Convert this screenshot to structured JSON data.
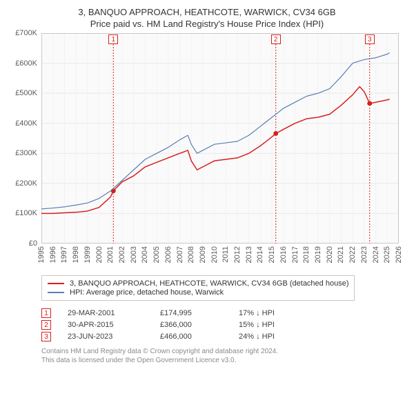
{
  "title_line1": "3, BANQUO APPROACH, HEATHCOTE, WARWICK, CV34 6GB",
  "title_line2": "Price paid vs. HM Land Registry's House Price Index (HPI)",
  "chart": {
    "type": "line",
    "background_color": "#fafafa",
    "grid_color": "#e8e8e8",
    "grid_minor_color": "#f2f2f2",
    "x": {
      "min": 1995,
      "max": 2026,
      "tick_step": 1,
      "label_fontsize": 11,
      "label_color": "#5a5a5a",
      "rotation_deg": -90
    },
    "y": {
      "min": 0,
      "max": 700000,
      "tick_step": 100000,
      "prefix": "£",
      "suffix": "K",
      "label_fontsize": 11,
      "label_color": "#5a5a5a"
    },
    "series": [
      {
        "name": "subject",
        "label": "3, BANQUO APPROACH, HEATHCOTE, WARWICK, CV34 6GB (detached house)",
        "color": "#d81e1e",
        "line_width": 1.5,
        "points": [
          [
            1995,
            100000
          ],
          [
            1996,
            100000
          ],
          [
            1997,
            102000
          ],
          [
            1998,
            104000
          ],
          [
            1999,
            108000
          ],
          [
            2000,
            120000
          ],
          [
            2001,
            155000
          ],
          [
            2001.24,
            174995
          ],
          [
            2002,
            205000
          ],
          [
            2003,
            225000
          ],
          [
            2004,
            255000
          ],
          [
            2005,
            270000
          ],
          [
            2006,
            285000
          ],
          [
            2007,
            300000
          ],
          [
            2007.7,
            310000
          ],
          [
            2008,
            275000
          ],
          [
            2008.5,
            245000
          ],
          [
            2009,
            255000
          ],
          [
            2010,
            275000
          ],
          [
            2011,
            280000
          ],
          [
            2012,
            285000
          ],
          [
            2013,
            300000
          ],
          [
            2014,
            325000
          ],
          [
            2015,
            355000
          ],
          [
            2015.33,
            366000
          ],
          [
            2016,
            380000
          ],
          [
            2017,
            400000
          ],
          [
            2018,
            415000
          ],
          [
            2019,
            420000
          ],
          [
            2020,
            430000
          ],
          [
            2021,
            460000
          ],
          [
            2022,
            495000
          ],
          [
            2022.6,
            522000
          ],
          [
            2023,
            505000
          ],
          [
            2023.47,
            466000
          ],
          [
            2024,
            470000
          ],
          [
            2025,
            478000
          ],
          [
            2025.2,
            480000
          ]
        ]
      },
      {
        "name": "hpi",
        "label": "HPI: Average price, detached house, Warwick",
        "color": "#5a7fb4",
        "line_width": 1.2,
        "points": [
          [
            1995,
            115000
          ],
          [
            1996,
            118000
          ],
          [
            1997,
            122000
          ],
          [
            1998,
            128000
          ],
          [
            1999,
            135000
          ],
          [
            2000,
            150000
          ],
          [
            2001,
            175000
          ],
          [
            2002,
            210000
          ],
          [
            2003,
            245000
          ],
          [
            2004,
            280000
          ],
          [
            2005,
            300000
          ],
          [
            2006,
            320000
          ],
          [
            2007,
            345000
          ],
          [
            2007.7,
            360000
          ],
          [
            2008,
            330000
          ],
          [
            2008.5,
            300000
          ],
          [
            2009,
            310000
          ],
          [
            2010,
            330000
          ],
          [
            2011,
            335000
          ],
          [
            2012,
            340000
          ],
          [
            2013,
            360000
          ],
          [
            2014,
            390000
          ],
          [
            2015,
            420000
          ],
          [
            2016,
            450000
          ],
          [
            2017,
            470000
          ],
          [
            2018,
            490000
          ],
          [
            2019,
            500000
          ],
          [
            2020,
            515000
          ],
          [
            2021,
            555000
          ],
          [
            2022,
            600000
          ],
          [
            2023,
            612000
          ],
          [
            2024,
            618000
          ],
          [
            2025,
            630000
          ],
          [
            2025.2,
            635000
          ]
        ]
      }
    ],
    "event_markers": [
      {
        "n": "1",
        "year": 2001.24,
        "value": 174995
      },
      {
        "n": "2",
        "year": 2015.33,
        "value": 366000
      },
      {
        "n": "3",
        "year": 2023.47,
        "value": 466000
      }
    ],
    "event_line_color": "#d81e1e",
    "event_point_color": "#d81e1e"
  },
  "legend": {
    "border_color": "#c8c8c8"
  },
  "events_table": [
    {
      "n": "1",
      "date": "29-MAR-2001",
      "price": "£174,995",
      "pct": "17%",
      "dir": "↓ HPI"
    },
    {
      "n": "2",
      "date": "30-APR-2015",
      "price": "£366,000",
      "pct": "15%",
      "dir": "↓ HPI"
    },
    {
      "n": "3",
      "date": "23-JUN-2023",
      "price": "£466,000",
      "pct": "24%",
      "dir": "↓ HPI"
    }
  ],
  "footer_line1": "Contains HM Land Registry data © Crown copyright and database right 2024.",
  "footer_line2": "This data is licensed under the Open Government Licence v3.0."
}
